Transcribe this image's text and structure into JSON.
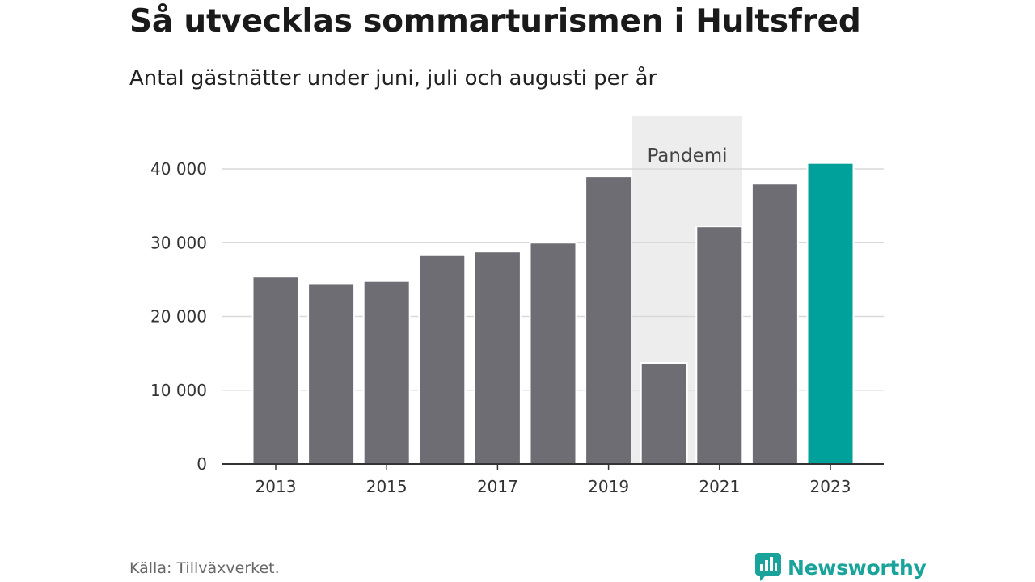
{
  "header": {
    "title": "Så utvecklas sommarturismen i Hultsfred",
    "subtitle": "Antal gästnätter under juni, juli och augusti per år"
  },
  "footer": {
    "source": "Källa: Tillväxverket.",
    "brand": "Newsworthy"
  },
  "colors": {
    "bar": "#6e6d73",
    "highlight": "#00a19a",
    "band": "#ededed",
    "grid": "#d9d9d9",
    "axis": "#333333",
    "brand": "#1aa39a"
  },
  "chart_data": {
    "type": "bar",
    "title": "Så utvecklas sommarturismen i Hultsfred",
    "subtitle": "Antal gästnätter under juni, juli och augusti per år",
    "categories": [
      "2013",
      "2014",
      "2015",
      "2016",
      "2017",
      "2018",
      "2019",
      "2020",
      "2021",
      "2022",
      "2023"
    ],
    "values": [
      25400,
      24500,
      24800,
      28300,
      28800,
      30000,
      39000,
      13700,
      32200,
      38000,
      40800
    ],
    "highlight_category": "2023",
    "x_tick_labels": [
      "2013",
      "2015",
      "2017",
      "2019",
      "2021",
      "2023"
    ],
    "y_ticks": [
      0,
      10000,
      20000,
      30000,
      40000
    ],
    "y_tick_labels": [
      "0",
      "10 000",
      "20 000",
      "30 000",
      "40 000"
    ],
    "ylim": [
      0,
      40000
    ],
    "grid": true,
    "legend": "none",
    "annotations": [
      {
        "type": "band",
        "label": "Pandemi",
        "from": "2020",
        "to": "2021"
      }
    ]
  }
}
